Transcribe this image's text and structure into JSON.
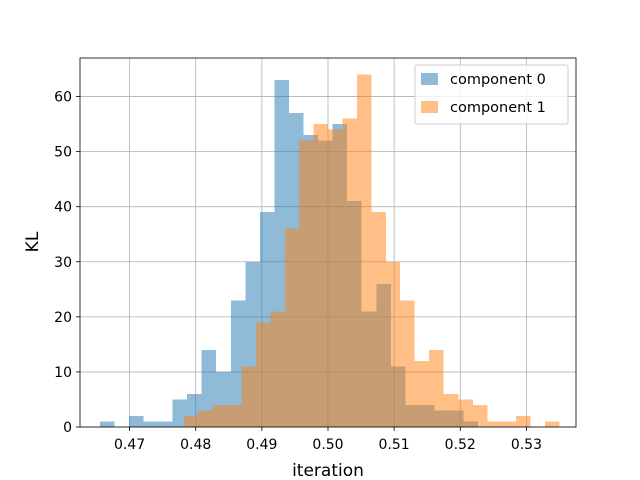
{
  "chart_data": {
    "type": "bar",
    "subtype": "overlaid-histogram",
    "xlabel": "iteration",
    "ylabel": "KL",
    "xlim": [
      0.4625,
      0.5375
    ],
    "ylim": [
      0,
      67
    ],
    "xticks": [
      0.47,
      0.48,
      0.49,
      0.5,
      0.51,
      0.52,
      0.53
    ],
    "xtick_labels": [
      "0.47",
      "0.48",
      "0.49",
      "0.50",
      "0.51",
      "0.52",
      "0.53"
    ],
    "yticks": [
      0,
      10,
      20,
      30,
      40,
      50,
      60
    ],
    "ytick_labels": [
      "0",
      "10",
      "20",
      "30",
      "40",
      "50",
      "60"
    ],
    "grid": true,
    "legend_position": "top-right",
    "series": [
      {
        "name": "component 0",
        "color": "#1f77b4",
        "opacity": 0.5,
        "bins": [
          [
            0.4655,
            0.4677,
            1
          ],
          [
            0.4677,
            0.4699,
            0
          ],
          [
            0.4699,
            0.4721,
            2
          ],
          [
            0.4721,
            0.4743,
            1
          ],
          [
            0.4743,
            0.4765,
            1
          ],
          [
            0.4765,
            0.4787,
            5
          ],
          [
            0.4787,
            0.4809,
            6
          ],
          [
            0.4809,
            0.4831,
            14
          ],
          [
            0.4831,
            0.4853,
            10
          ],
          [
            0.4853,
            0.4875,
            23
          ],
          [
            0.4875,
            0.4897,
            30
          ],
          [
            0.4897,
            0.4919,
            39
          ],
          [
            0.4919,
            0.4941,
            63
          ],
          [
            0.4941,
            0.4963,
            57
          ],
          [
            0.4963,
            0.4985,
            53
          ],
          [
            0.4985,
            0.5007,
            52
          ],
          [
            0.5007,
            0.5029,
            55
          ],
          [
            0.5029,
            0.5051,
            41
          ],
          [
            0.5051,
            0.5073,
            21
          ],
          [
            0.5073,
            0.5095,
            26
          ],
          [
            0.5095,
            0.5117,
            11
          ],
          [
            0.5117,
            0.5139,
            4
          ],
          [
            0.5139,
            0.5161,
            4
          ],
          [
            0.5161,
            0.5183,
            3
          ],
          [
            0.5183,
            0.5205,
            3
          ],
          [
            0.5205,
            0.5227,
            1
          ]
        ]
      },
      {
        "name": "component 1",
        "color": "#ff7f0e",
        "opacity": 0.5,
        "bins": [
          [
            0.4782,
            0.4803,
            2
          ],
          [
            0.4803,
            0.4825,
            3
          ],
          [
            0.4825,
            0.4847,
            4
          ],
          [
            0.4847,
            0.4869,
            4
          ],
          [
            0.4869,
            0.4891,
            11
          ],
          [
            0.4891,
            0.4913,
            19
          ],
          [
            0.4913,
            0.4935,
            21
          ],
          [
            0.4935,
            0.4956,
            36
          ],
          [
            0.4956,
            0.4978,
            52
          ],
          [
            0.4978,
            0.5,
            55
          ],
          [
            0.5,
            0.5022,
            54
          ],
          [
            0.5022,
            0.5044,
            56
          ],
          [
            0.5044,
            0.5066,
            64
          ],
          [
            0.5066,
            0.5088,
            39
          ],
          [
            0.5088,
            0.5109,
            30
          ],
          [
            0.5109,
            0.5131,
            23
          ],
          [
            0.5131,
            0.5153,
            12
          ],
          [
            0.5153,
            0.5175,
            14
          ],
          [
            0.5175,
            0.5197,
            6
          ],
          [
            0.5197,
            0.5219,
            5
          ],
          [
            0.5219,
            0.5241,
            4
          ],
          [
            0.5241,
            0.5262,
            1
          ],
          [
            0.5262,
            0.5284,
            1
          ],
          [
            0.5284,
            0.5306,
            2
          ],
          [
            0.5306,
            0.5328,
            0
          ],
          [
            0.5328,
            0.535,
            1
          ]
        ]
      }
    ]
  }
}
